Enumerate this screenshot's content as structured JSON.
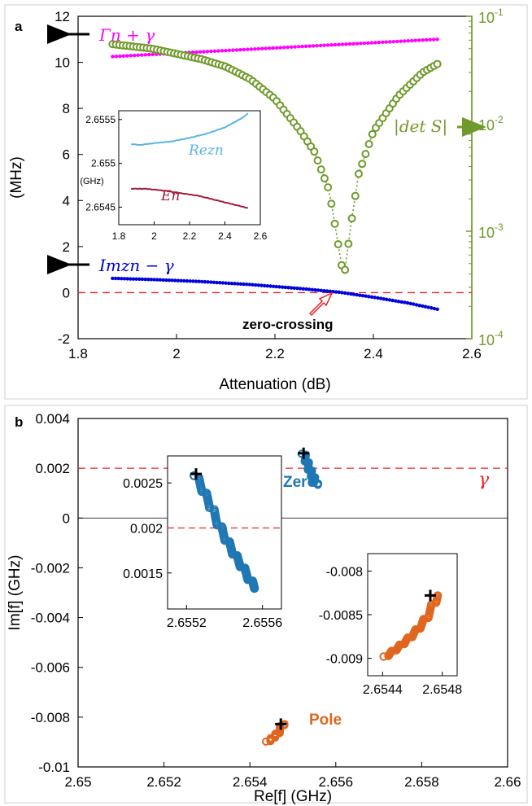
{
  "chart_data": [
    {
      "panel_label": "a",
      "type": "line",
      "xlabel": "Attenuation (dB)",
      "ylabel": "(MHz)",
      "xlim": [
        1.8,
        2.6
      ],
      "ylim": [
        -2,
        12
      ],
      "xticks": [
        "1.8",
        "2",
        "2.2",
        "2.4",
        "2.6"
      ],
      "yticks": [
        "-2",
        "0",
        "2",
        "4",
        "6",
        "8",
        "10",
        "12"
      ],
      "right_axis": {
        "scale": "log",
        "ylim": [
          0.0001,
          0.1
        ],
        "ticks": [
          "10",
          "10",
          "10",
          "10"
        ],
        "tick_exponents": [
          "-4",
          "-3",
          "-2",
          "-1"
        ],
        "color": "#6f9a2a"
      },
      "series": [
        {
          "name": "Γn + γ",
          "axis": "left",
          "color": "#ff00ff",
          "marker": "dot",
          "x": [
            1.87,
            2.53
          ],
          "y": [
            10.25,
            11.0
          ]
        },
        {
          "name": "Imzn − γ",
          "axis": "left",
          "color": "#0000dd",
          "marker": "dot",
          "x": [
            1.87,
            1.95,
            2.05,
            2.15,
            2.25,
            2.33,
            2.4,
            2.47,
            2.53
          ],
          "y": [
            0.62,
            0.57,
            0.48,
            0.35,
            0.18,
            0.02,
            -0.2,
            -0.45,
            -0.72
          ]
        },
        {
          "name": "|det S|",
          "axis": "right",
          "color": "#6f9a2a",
          "marker": "circle",
          "x": [
            1.87,
            1.95,
            2.05,
            2.1,
            2.15,
            2.2,
            2.25,
            2.28,
            2.31,
            2.325,
            2.34,
            2.355,
            2.37,
            2.4,
            2.45,
            2.5,
            2.53
          ],
          "y": [
            0.055,
            0.05,
            0.04,
            0.034,
            0.026,
            0.017,
            0.0088,
            0.0055,
            0.0024,
            0.00095,
            0.00036,
            0.0012,
            0.0034,
            0.0085,
            0.018,
            0.03,
            0.036
          ]
        }
      ],
      "reference_line": {
        "y": 0,
        "color": "#ee2222",
        "style": "dashed"
      },
      "labels": {
        "gamma_plus": "Γn + γ",
        "im_minus": "Imzn − γ",
        "det": "|det S|",
        "zero_crossing": "zero-crossing"
      },
      "inset": {
        "xlim": [
          1.8,
          2.6
        ],
        "ylim": [
          2.6543,
          2.6556
        ],
        "xticks": [
          "1.8",
          "2",
          "2.2",
          "2.4",
          "2.6"
        ],
        "yticks": [
          "2.6545",
          "2.655",
          "2.6555"
        ],
        "ylabel": "(GHz)",
        "series": [
          {
            "name": "Rezn",
            "color": "#5ab4e6",
            "x": [
              1.87,
              1.92,
              2.0,
              2.1,
              2.2,
              2.3,
              2.4,
              2.5,
              2.53
            ],
            "y": [
              2.65522,
              2.65521,
              2.65523,
              2.65525,
              2.65529,
              2.65534,
              2.65541,
              2.65552,
              2.65557
            ]
          },
          {
            "name": "En",
            "color": "#a51c3a",
            "x": [
              1.87,
              1.95,
              2.05,
              2.15,
              2.25,
              2.35,
              2.45,
              2.53
            ],
            "y": [
              2.65471,
              2.65471,
              2.65469,
              2.65466,
              2.65463,
              2.65458,
              2.65453,
              2.65449
            ]
          }
        ]
      }
    },
    {
      "panel_label": "b",
      "type": "scatter",
      "xlabel": "Re[f] (GHz)",
      "ylabel": "Im[f] (GHz)",
      "xlim": [
        2.65,
        2.66
      ],
      "ylim": [
        -0.01,
        0.004
      ],
      "xticks": [
        "2.65",
        "2.652",
        "2.654",
        "2.656",
        "2.658",
        "2.66"
      ],
      "yticks": [
        "-0.01",
        "-0.008",
        "-0.006",
        "-0.004",
        "-0.002",
        "0",
        "0.002",
        "0.004"
      ],
      "gamma_line": {
        "y": 0.002,
        "color": "#ee2222",
        "style": "dashed",
        "label": "γ"
      },
      "series": [
        {
          "name": "Zero",
          "color": "#1f77b4",
          "marker": "circle",
          "x": [
            2.65525,
            2.65528,
            2.65532,
            2.65536,
            2.65541,
            2.65546,
            2.65551,
            2.65556
          ],
          "y": [
            0.00258,
            0.00245,
            0.00228,
            0.00208,
            0.00187,
            0.00168,
            0.00151,
            0.00133
          ]
        },
        {
          "name": "Pole",
          "color": "#e0661f",
          "marker": "circle",
          "x": [
            2.65442,
            2.65447,
            2.65453,
            2.65459,
            2.65465,
            2.6547,
            2.65477
          ],
          "y": [
            -0.00898,
            -0.00892,
            -0.00884,
            -0.00875,
            -0.00864,
            -0.00852,
            -0.00828
          ]
        }
      ],
      "start_markers": [
        {
          "x": 2.65525,
          "y": 0.0026
        },
        {
          "x": 2.65472,
          "y": -0.00828
        }
      ],
      "inset_zero": {
        "xlim": [
          2.6551,
          2.6557
        ],
        "ylim": [
          0.0011,
          0.0028
        ],
        "xticks": [
          "2.6552",
          "2.6556"
        ],
        "yticks": [
          "0.0015",
          "0.002",
          "0.0025"
        ],
        "gamma_y": 0.002
      },
      "inset_pole": {
        "xlim": [
          2.6543,
          2.6549
        ],
        "ylim": [
          -0.0092,
          -0.0078
        ],
        "xticks": [
          "2.6544",
          "2.6548"
        ],
        "yticks": [
          "-0.009",
          "-0.0085",
          "-0.008"
        ]
      }
    }
  ]
}
